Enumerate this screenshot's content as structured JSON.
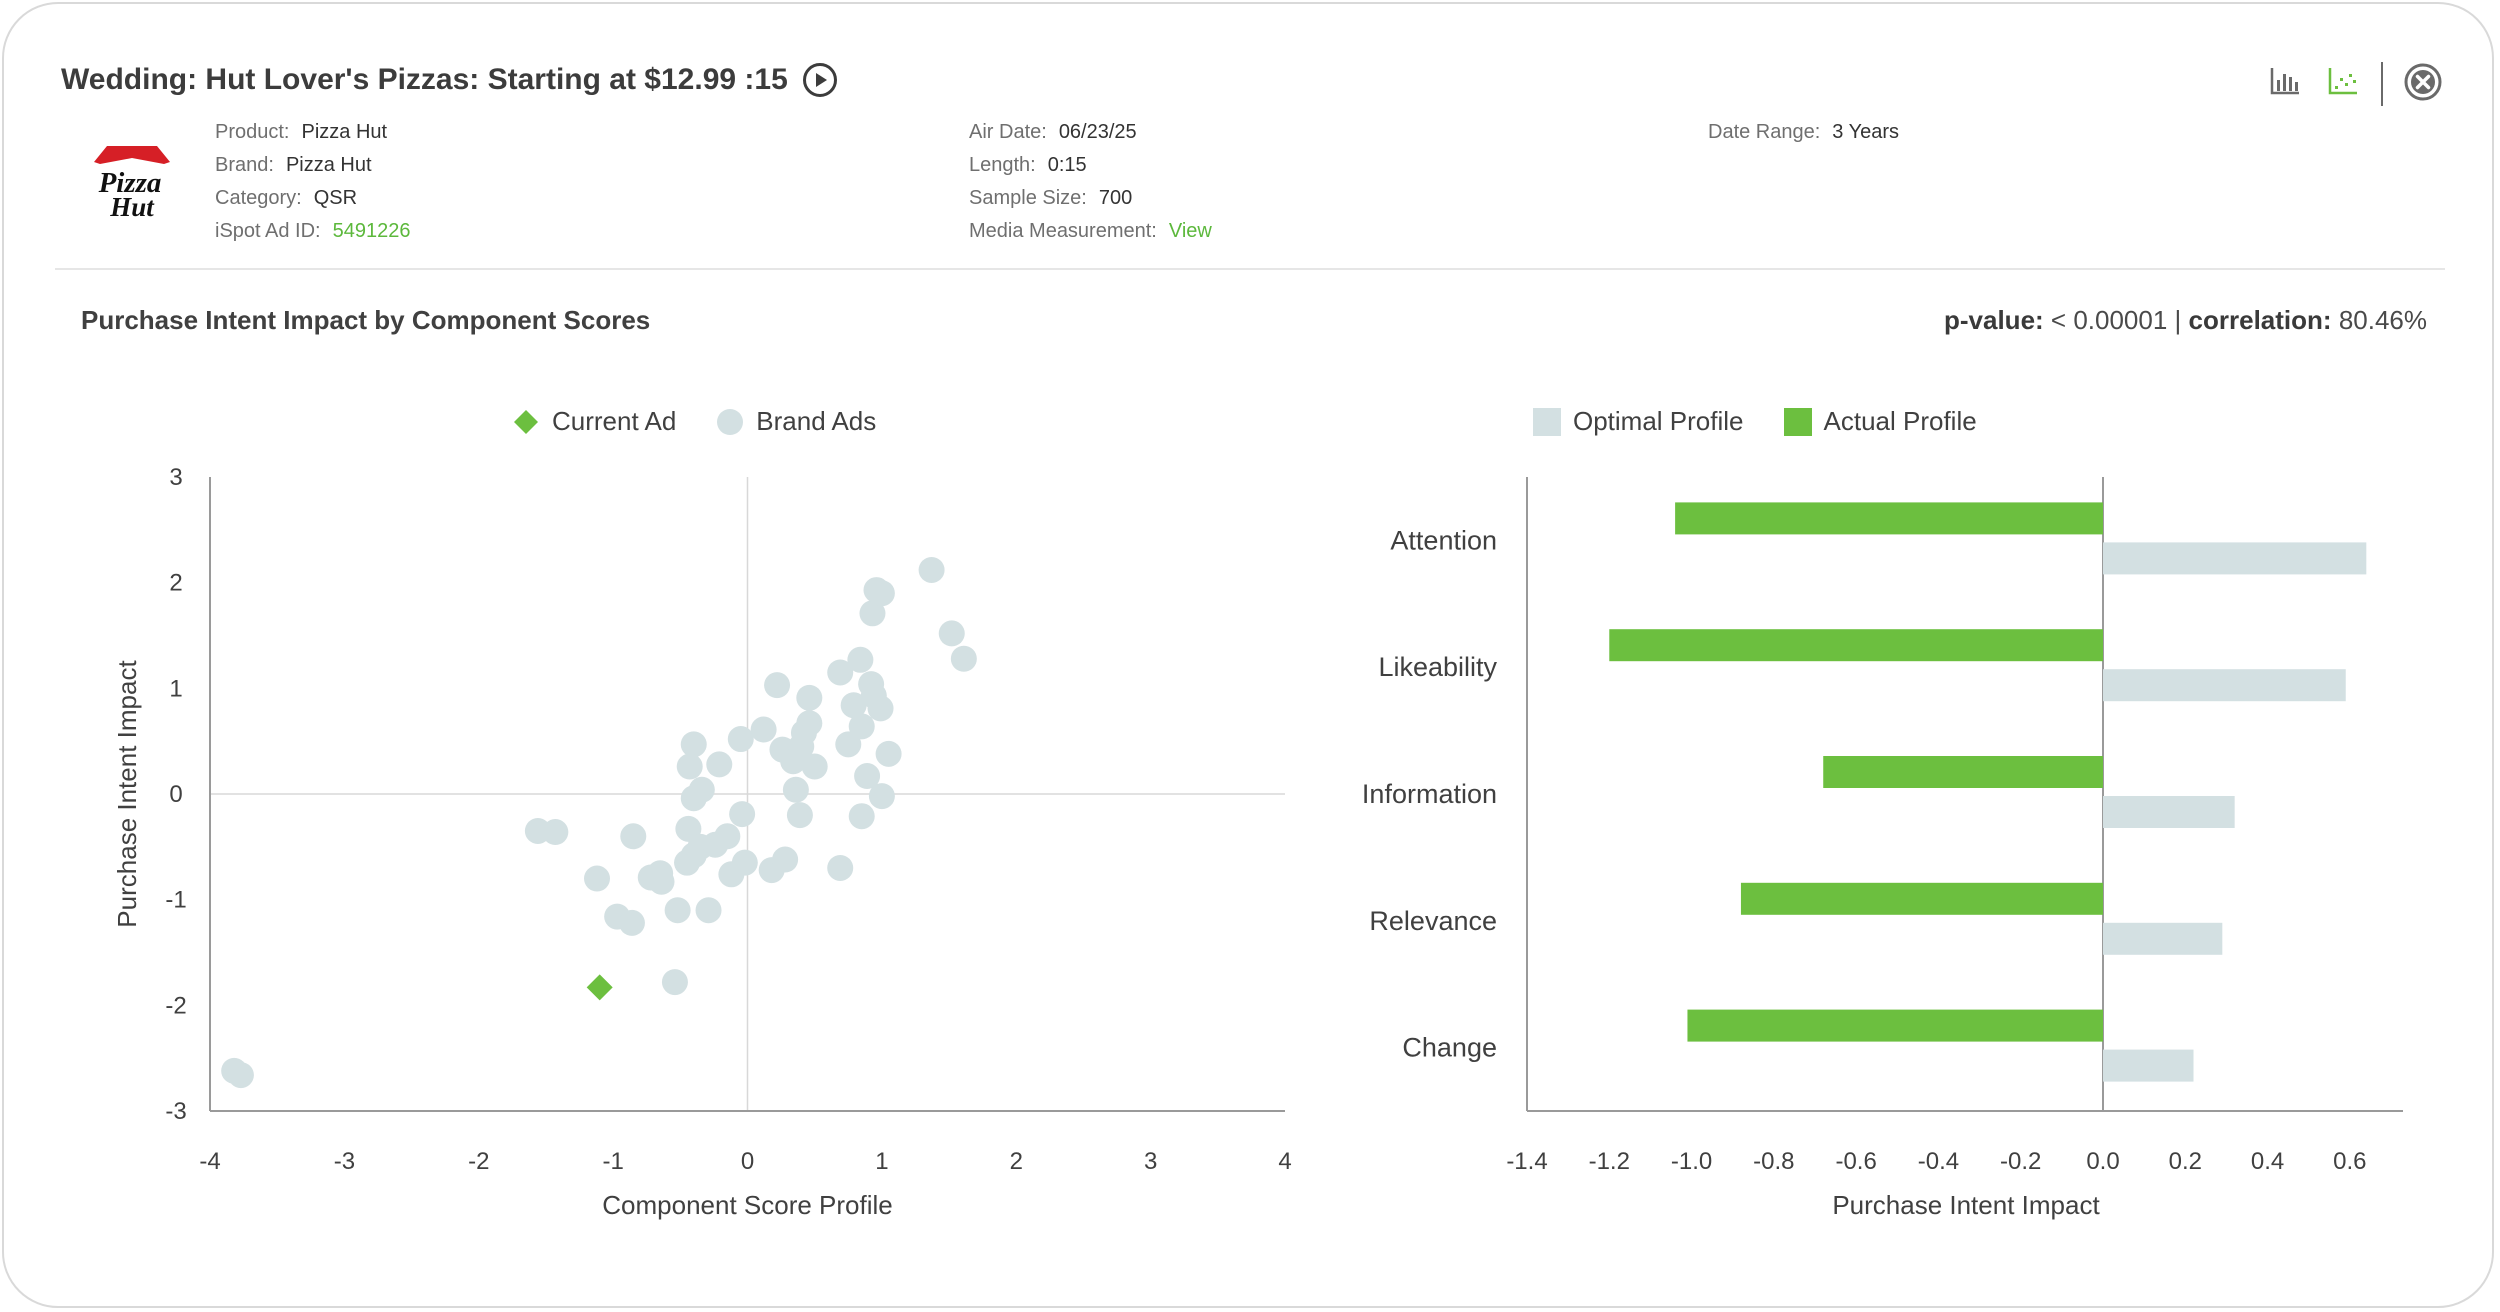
{
  "header": {
    "title": "Wedding: Hut Lover's Pizzas: Starting at $12.99 :15",
    "logo_text": [
      "Pizza",
      "Hut"
    ]
  },
  "meta": {
    "col1": [
      {
        "label": "Product:",
        "value": "Pizza Hut"
      },
      {
        "label": "Brand:",
        "value": "Pizza Hut"
      },
      {
        "label": "Category:",
        "value": "QSR"
      },
      {
        "label": "iSpot Ad ID:",
        "value": "5491226",
        "link": true
      }
    ],
    "col2": [
      {
        "label": "Air Date:",
        "value": "06/23/25"
      },
      {
        "label": "Length:",
        "value": "0:15"
      },
      {
        "label": "Sample Size:",
        "value": "700"
      },
      {
        "label": "Media Measurement:",
        "value": "View",
        "link": true
      }
    ],
    "col3": [
      {
        "label": "Date Range:",
        "value": "3 Years"
      }
    ]
  },
  "toolbar": {
    "icons": [
      "bar-chart-icon",
      "scatter-chart-icon",
      "close-icon"
    ],
    "active": "scatter-chart-icon"
  },
  "section": {
    "title": "Purchase Intent Impact by Component Scores",
    "pvalue_label": "p-value:",
    "pvalue": "< 0.00001",
    "separator": "|",
    "correlation_label": "correlation:",
    "correlation": "80.46%"
  },
  "colors": {
    "accent_green": "#6cbf3f",
    "brand_ads": "#d3e0e2",
    "optimal": "#d3e0e2",
    "axis": "#9a9a9a",
    "link_green": "#5cb83c"
  },
  "chart_data": [
    {
      "type": "scatter",
      "xlabel": "Component Score Profile",
      "ylabel": "Purchase Intent Impact",
      "xlim": [
        -4,
        4
      ],
      "ylim": [
        -3,
        3
      ],
      "xticks": [
        -4,
        -3,
        -2,
        -1,
        0,
        1,
        2,
        3,
        4
      ],
      "yticks": [
        -3,
        -2,
        -1,
        0,
        1,
        2,
        3
      ],
      "legend": "top",
      "series": [
        {
          "name": "Current Ad",
          "marker": "diamond",
          "points": [
            [
              -1.1,
              -1.83
            ]
          ]
        },
        {
          "name": "Brand Ads",
          "marker": "circle",
          "points": [
            [
              -3.82,
              -2.62
            ],
            [
              -3.77,
              -2.66
            ],
            [
              -1.56,
              -0.35
            ],
            [
              -1.43,
              -0.36
            ],
            [
              -1.12,
              -0.8
            ],
            [
              -0.85,
              -0.4
            ],
            [
              -0.97,
              -1.16
            ],
            [
              -0.86,
              -1.22
            ],
            [
              -0.72,
              -0.79
            ],
            [
              -0.65,
              -0.75
            ],
            [
              -0.64,
              -0.83
            ],
            [
              -0.52,
              -1.1
            ],
            [
              -0.54,
              -1.78
            ],
            [
              -0.45,
              -0.65
            ],
            [
              -0.4,
              -0.58
            ],
            [
              -0.44,
              -0.33
            ],
            [
              -0.35,
              -0.5
            ],
            [
              -0.29,
              -1.1
            ],
            [
              -0.15,
              -0.4
            ],
            [
              -0.24,
              -0.48
            ],
            [
              -0.12,
              -0.76
            ],
            [
              -0.04,
              -0.19
            ],
            [
              -0.02,
              -0.65
            ],
            [
              -0.4,
              0.47
            ],
            [
              -0.43,
              0.26
            ],
            [
              -0.34,
              0.04
            ],
            [
              -0.4,
              -0.04
            ],
            [
              -0.21,
              0.28
            ],
            [
              -0.05,
              0.52
            ],
            [
              0.12,
              0.61
            ],
            [
              0.18,
              -0.72
            ],
            [
              0.28,
              -0.62
            ],
            [
              0.22,
              1.03
            ],
            [
              0.26,
              0.42
            ],
            [
              0.34,
              0.31
            ],
            [
              0.36,
              0.04
            ],
            [
              0.4,
              0.45
            ],
            [
              0.42,
              0.58
            ],
            [
              0.46,
              0.67
            ],
            [
              0.39,
              -0.2
            ],
            [
              0.46,
              0.91
            ],
            [
              0.5,
              0.26
            ],
            [
              0.69,
              -0.7
            ],
            [
              0.69,
              1.15
            ],
            [
              0.75,
              0.47
            ],
            [
              0.79,
              0.84
            ],
            [
              0.85,
              0.64
            ],
            [
              0.84,
              1.27
            ],
            [
              0.92,
              1.04
            ],
            [
              0.94,
              0.93
            ],
            [
              0.85,
              -0.21
            ],
            [
              0.89,
              0.17
            ],
            [
              0.99,
              0.81
            ],
            [
              1.0,
              -0.02
            ],
            [
              1.05,
              0.38
            ],
            [
              0.93,
              1.71
            ],
            [
              0.96,
              1.93
            ],
            [
              1.0,
              1.9
            ],
            [
              1.37,
              2.12
            ],
            [
              1.52,
              1.52
            ],
            [
              1.61,
              1.28
            ]
          ]
        }
      ]
    },
    {
      "type": "bar",
      "orientation": "horizontal",
      "xlabel": "Purchase Intent Impact",
      "xlim": [
        -1.4,
        0.7
      ],
      "xticks": [
        "-1.4",
        "-1.2",
        "-1.0",
        "-0.8",
        "-0.6",
        "-0.4",
        "-0.2",
        "0.0",
        "0.2",
        "0.4",
        "0.6"
      ],
      "legend": "top",
      "categories": [
        "Attention",
        "Likeability",
        "Information",
        "Relevance",
        "Change"
      ],
      "series": [
        {
          "name": "Optimal Profile",
          "values": [
            0.64,
            0.59,
            0.32,
            0.29,
            0.22
          ]
        },
        {
          "name": "Actual Profile",
          "values": [
            -1.04,
            -1.2,
            -0.68,
            -0.88,
            -1.01
          ]
        }
      ]
    }
  ]
}
